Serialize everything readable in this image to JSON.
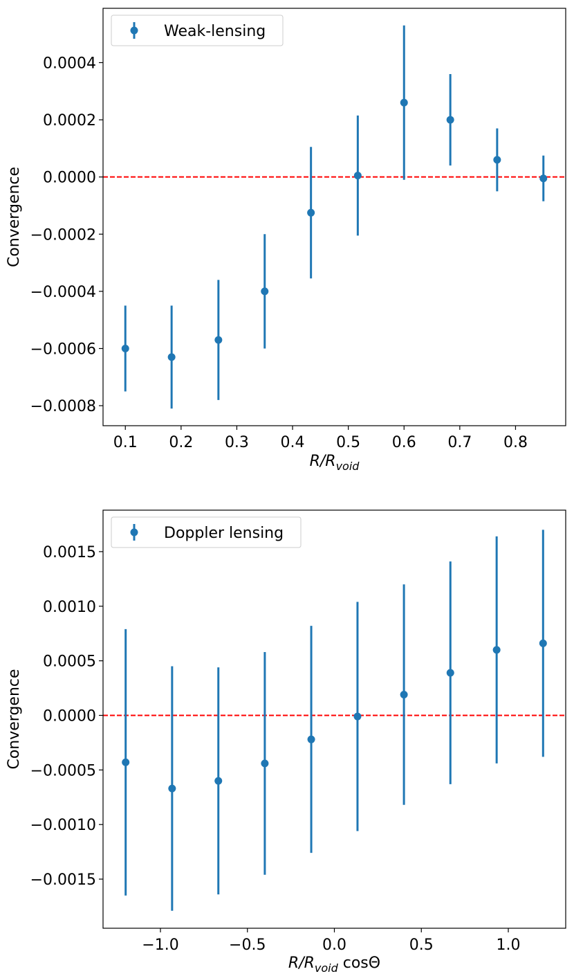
{
  "chart_data": [
    {
      "type": "scatter",
      "style": "errorbar",
      "legend": "Weak-lensing",
      "legend_position": "top-left",
      "xlabel": {
        "main": "R/R",
        "sub": "void",
        "suffix": ""
      },
      "ylabel": "Convergence",
      "xlim": [
        0.06,
        0.89
      ],
      "ylim": [
        -0.00087,
        0.00059
      ],
      "xticks": [
        0.1,
        0.2,
        0.3,
        0.4,
        0.5,
        0.6,
        0.7,
        0.8
      ],
      "xtick_labels": [
        "0.1",
        "0.2",
        "0.3",
        "0.4",
        "0.5",
        "0.6",
        "0.7",
        "0.8"
      ],
      "yticks": [
        -0.0008,
        -0.0006,
        -0.0004,
        -0.0002,
        0.0,
        0.0002,
        0.0004
      ],
      "ytick_labels": [
        "−0.0008",
        "−0.0006",
        "−0.0004",
        "−0.0002",
        "0.0000",
        "0.0002",
        "0.0004"
      ],
      "reference_line": {
        "y": 0.0,
        "color": "#ff0000",
        "style": "dashed"
      },
      "x": [
        0.1,
        0.183,
        0.267,
        0.35,
        0.433,
        0.517,
        0.6,
        0.683,
        0.767,
        0.85
      ],
      "y": [
        -0.0006,
        -0.00063,
        -0.00057,
        -0.0004,
        -0.000125,
        5e-06,
        0.00026,
        0.0002,
        6e-05,
        -5e-06
      ],
      "yerr": [
        0.00015,
        0.00018,
        0.00021,
        0.0002,
        0.00023,
        0.00021,
        0.00027,
        0.00016,
        0.00011,
        8e-05
      ],
      "color": "#1f77b4"
    },
    {
      "type": "scatter",
      "style": "errorbar",
      "legend": "Doppler lensing",
      "legend_position": "top-left",
      "xlabel": {
        "main": "R/R",
        "sub": "void",
        "suffix": " cosΘ"
      },
      "ylabel": "Convergence",
      "xlim": [
        -1.33,
        1.33
      ],
      "ylim": [
        -0.00195,
        0.00188
      ],
      "xticks": [
        -1.0,
        -0.5,
        0.0,
        0.5,
        1.0
      ],
      "xtick_labels": [
        "−1.0",
        "−0.5",
        "0.0",
        "0.5",
        "1.0"
      ],
      "yticks": [
        -0.0015,
        -0.001,
        -0.0005,
        0.0,
        0.0005,
        0.001,
        0.0015
      ],
      "ytick_labels": [
        "−0.0015",
        "−0.0010",
        "−0.0005",
        "0.0000",
        "0.0005",
        "0.0010",
        "0.0015"
      ],
      "reference_line": {
        "y": 0.0,
        "color": "#ff0000",
        "style": "dashed"
      },
      "x": [
        -1.2,
        -0.933,
        -0.667,
        -0.4,
        -0.133,
        0.133,
        0.4,
        0.667,
        0.933,
        1.2
      ],
      "y": [
        -0.00043,
        -0.00067,
        -0.0006,
        -0.00044,
        -0.00022,
        -1e-05,
        0.00019,
        0.00039,
        0.0006,
        0.00066
      ],
      "yerr": [
        0.00122,
        0.00112,
        0.00104,
        0.00102,
        0.00104,
        0.00105,
        0.00101,
        0.00102,
        0.00104,
        0.00104
      ],
      "color": "#1f77b4"
    }
  ]
}
